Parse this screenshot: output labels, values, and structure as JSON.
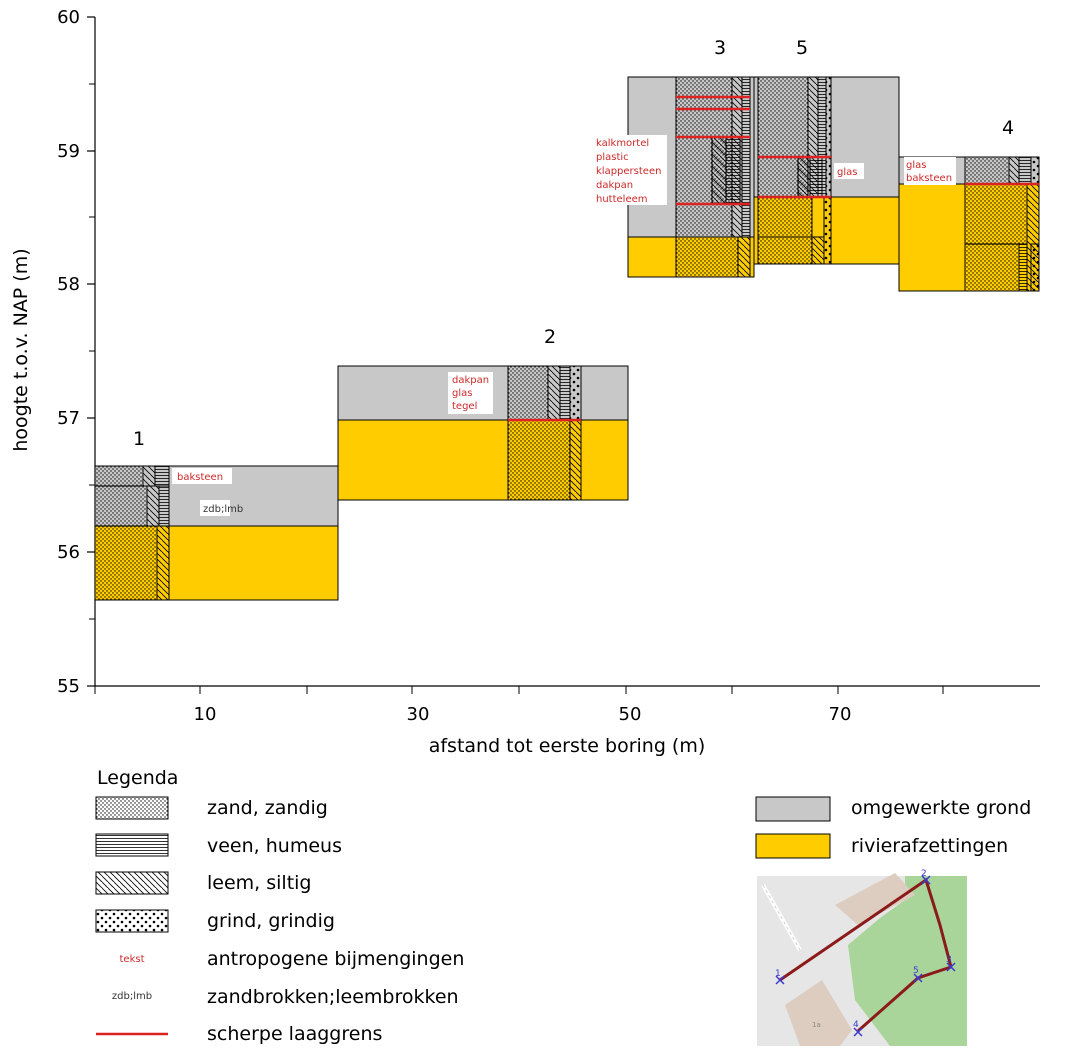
{
  "axes": {
    "ylabel": "hoogte t.o.v. NAP (m)",
    "xlabel": "afstand tot eerste boring (m)",
    "y_ticks": [
      "55",
      "56",
      "57",
      "58",
      "59",
      "60"
    ],
    "x_ticks": [
      "10",
      "30",
      "50",
      "70"
    ]
  },
  "borings": [
    {
      "label": "1",
      "notes": [
        "baksteen"
      ],
      "grey_note": "zdb;lmb"
    },
    {
      "label": "2",
      "notes": [
        "dakpan",
        "glas",
        "tegel"
      ]
    },
    {
      "label": "3",
      "notes": [
        "kalkmortel",
        "plastic",
        "klappersteen",
        "dakpan",
        "hutteleem"
      ]
    },
    {
      "label": "5",
      "notes": [
        "glas"
      ]
    },
    {
      "label": "4",
      "notes": [
        "glas",
        "baksteen"
      ]
    }
  ],
  "legend": {
    "title": "Legenda",
    "items": [
      {
        "name": "zand",
        "label": "zand, zandig"
      },
      {
        "name": "veen",
        "label": "veen, humeus"
      },
      {
        "name": "leem",
        "label": "leem, siltig"
      },
      {
        "name": "grind",
        "label": "grind, grindig"
      },
      {
        "name": "antro",
        "label": "antropogene bijmengingen",
        "sample": "tekst"
      },
      {
        "name": "brokken",
        "label": "zandbrokken;leembrokken",
        "sample": "zdb;lmb"
      },
      {
        "name": "laaggrens",
        "label": "scherpe laaggrens"
      }
    ],
    "right_items": [
      {
        "name": "omgewerkt",
        "label": "omgewerkte grond"
      },
      {
        "name": "rivier",
        "label": "rivierafzettingen"
      }
    ]
  },
  "map": {
    "points": [
      "1",
      "2",
      "3",
      "4",
      "5"
    ],
    "house_label": "1a"
  },
  "colors": {
    "grey": "#c8c8c8",
    "yellow": "#ffcc00",
    "red": "#dd2222",
    "map_bg": "#e6e6e6",
    "map_green": "#a9d59a",
    "map_building": "#dccdc0",
    "map_line": "#8b1a1a",
    "map_point": "#3a3ad0"
  }
}
